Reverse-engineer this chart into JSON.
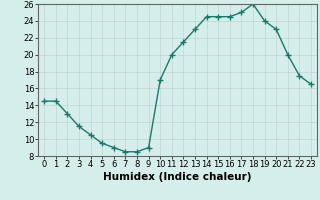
{
  "x": [
    0,
    1,
    2,
    3,
    4,
    5,
    6,
    7,
    8,
    9,
    10,
    11,
    12,
    13,
    14,
    15,
    16,
    17,
    18,
    19,
    20,
    21,
    22,
    23
  ],
  "y": [
    14.5,
    14.5,
    13.0,
    11.5,
    10.5,
    9.5,
    9.0,
    8.5,
    8.5,
    9.0,
    17.0,
    20.0,
    21.5,
    23.0,
    24.5,
    24.5,
    24.5,
    25.0,
    26.0,
    24.0,
    23.0,
    20.0,
    17.5,
    16.5
  ],
  "line_color": "#1a7a6a",
  "marker": "+",
  "markersize": 4,
  "linewidth": 1.0,
  "xlabel": "Humidex (Indice chaleur)",
  "xlim": [
    -0.5,
    23.5
  ],
  "ylim": [
    8,
    26
  ],
  "yticks": [
    8,
    10,
    12,
    14,
    16,
    18,
    20,
    22,
    24,
    26
  ],
  "bg_color": "#d5eeeb",
  "grid_color": "#c0d5d3",
  "tick_fontsize": 6,
  "xlabel_fontsize": 7.5
}
